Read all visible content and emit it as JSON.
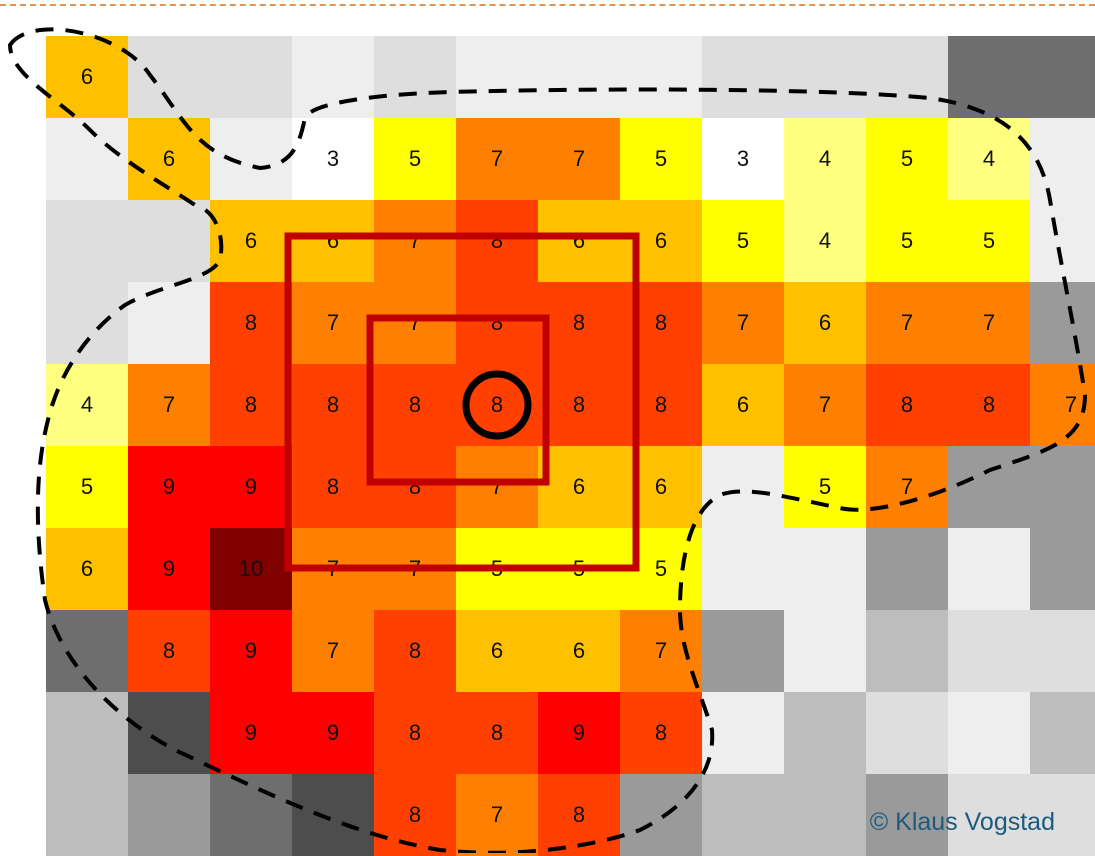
{
  "copyright": "© Klaus Vogstad",
  "grid": {
    "rows": [
      [
        6,
        null,
        null,
        null,
        null,
        null,
        null,
        null,
        null,
        null,
        null,
        null,
        null
      ],
      [
        null,
        6,
        null,
        3,
        5,
        7,
        7,
        5,
        3,
        4,
        5,
        4,
        null
      ],
      [
        null,
        null,
        6,
        6,
        7,
        8,
        6,
        6,
        5,
        4,
        5,
        5,
        null
      ],
      [
        null,
        null,
        8,
        7,
        7,
        8,
        8,
        8,
        7,
        6,
        7,
        7,
        null
      ],
      [
        4,
        7,
        8,
        8,
        8,
        8,
        8,
        8,
        6,
        7,
        8,
        8,
        7
      ],
      [
        5,
        9,
        9,
        8,
        8,
        7,
        6,
        6,
        null,
        5,
        7,
        null,
        null
      ],
      [
        6,
        9,
        10,
        7,
        7,
        5,
        5,
        5,
        null,
        null,
        null,
        null,
        null
      ],
      [
        null,
        8,
        9,
        7,
        8,
        6,
        6,
        7,
        null,
        null,
        null,
        null,
        null
      ],
      [
        null,
        null,
        9,
        9,
        8,
        8,
        9,
        8,
        null,
        null,
        null,
        null,
        null
      ],
      [
        null,
        null,
        null,
        null,
        8,
        7,
        8,
        null,
        null,
        null,
        null,
        null,
        null
      ]
    ],
    "value_colors": {
      "3": "#ffffff",
      "4": "#ffff80",
      "5": "#ffff00",
      "6": "#ffc000",
      "7": "#ff7f00",
      "8": "#ff4000",
      "9": "#ff0000",
      "10": "#800000"
    },
    "empty_colors": [
      [
        null,
        "#dedede",
        "#dedede",
        "#eeeeee",
        "#dedede",
        "#eeeeee",
        "#eeeeee",
        "#eeeeee",
        "#dedede",
        "#dedede",
        "#dedede",
        "#6e6e6e",
        "#6e6e6e"
      ],
      [
        "#eeeeee",
        null,
        "#eeeeee",
        null,
        null,
        null,
        null,
        null,
        null,
        null,
        null,
        null,
        "#eeeeee"
      ],
      [
        "#dedede",
        "#dedede",
        null,
        null,
        null,
        null,
        null,
        null,
        null,
        null,
        null,
        null,
        "#eeeeee"
      ],
      [
        "#dedede",
        "#eeeeee",
        null,
        null,
        null,
        null,
        null,
        null,
        null,
        null,
        null,
        null,
        "#9a9a9a"
      ],
      [
        null,
        null,
        null,
        null,
        null,
        null,
        null,
        null,
        null,
        null,
        null,
        null,
        null
      ],
      [
        null,
        null,
        null,
        null,
        null,
        null,
        null,
        null,
        "#eeeeee",
        null,
        null,
        "#9a9a9a",
        "#9a9a9a"
      ],
      [
        null,
        null,
        null,
        null,
        null,
        null,
        null,
        null,
        "#eeeeee",
        "#eeeeee",
        "#9a9a9a",
        "#eeeeee",
        "#9a9a9a"
      ],
      [
        "#6e6e6e",
        null,
        null,
        null,
        null,
        null,
        null,
        null,
        "#9a9a9a",
        "#eeeeee",
        "#bdbdbd",
        "#dedede",
        "#dedede"
      ],
      [
        "#bdbdbd",
        "#4d4d4d",
        null,
        null,
        null,
        null,
        null,
        null,
        "#eeeeee",
        "#bdbdbd",
        "#dedede",
        "#eeeeee",
        "#bdbdbd"
      ],
      [
        "#bdbdbd",
        "#9a9a9a",
        "#6e6e6e",
        "#4d4d4d",
        null,
        null,
        null,
        "#9a9a9a",
        "#bdbdbd",
        "#bdbdbd",
        "#9a9a9a",
        "#dedede",
        "#dedede"
      ]
    ]
  },
  "colors": {
    "highlight_squares": "#c00000",
    "focus_ring": "#000000",
    "boundary": "#000000"
  }
}
